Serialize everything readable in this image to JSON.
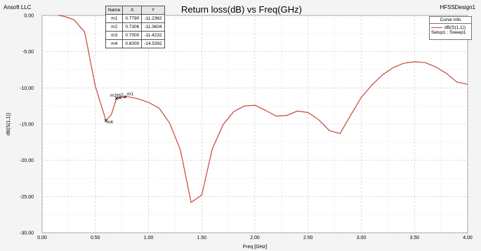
{
  "header": {
    "company": "Ansoft LLC",
    "title": "Return loss(dB) vs Freq(GHz)",
    "design": "HFSSDesign1"
  },
  "marker_table": {
    "headers": [
      "Name",
      "X",
      "Y"
    ],
    "rows": [
      [
        "m1",
        "0.7790",
        "-11.2362"
      ],
      [
        "m2",
        "0.7306",
        "-11.3604"
      ],
      [
        "m3",
        "0.7000",
        "-11.4232"
      ],
      [
        "m4",
        "0.6000",
        "-14.5392"
      ]
    ]
  },
  "curve_info": {
    "title": "Curve Info",
    "series_label": "dB(S(1,1))",
    "sweep_label": "Setup1 : Sweep1"
  },
  "colors": {
    "curve": "#c8463c",
    "plot_bg": "#ffffff",
    "grid": "#c8c8c8"
  },
  "chart_data": {
    "type": "line",
    "title": "Return loss(dB) vs Freq(GHz)",
    "xlabel": "Freq [GHz]",
    "ylabel": "dB(S(1,1))",
    "xlim": [
      0,
      4
    ],
    "ylim": [
      -30,
      0
    ],
    "grid": true,
    "legend_position": "top-right",
    "xticks": [
      "0.00",
      "0.50",
      "1.00",
      "1.50",
      "2.00",
      "2.50",
      "3.00",
      "3.50",
      "4.00"
    ],
    "yticks": [
      "0.00",
      "-5.00",
      "-10.00",
      "-15.00",
      "-20.00",
      "-25.00",
      "-30.00"
    ],
    "series": [
      {
        "name": "dB(S(1,1))",
        "x": [
          0.15,
          0.2,
          0.3,
          0.4,
          0.5,
          0.6,
          0.65,
          0.7,
          0.73,
          0.78,
          0.8,
          0.9,
          1.0,
          1.1,
          1.2,
          1.3,
          1.4,
          1.5,
          1.6,
          1.7,
          1.8,
          1.9,
          2.0,
          2.1,
          2.2,
          2.3,
          2.4,
          2.5,
          2.6,
          2.7,
          2.8,
          2.9,
          3.0,
          3.1,
          3.2,
          3.3,
          3.4,
          3.5,
          3.6,
          3.7,
          3.8,
          3.9,
          4.0
        ],
        "y": [
          0.0,
          -0.1,
          -0.6,
          -2.3,
          -9.8,
          -14.5,
          -13.7,
          -11.4,
          -11.36,
          -11.24,
          -11.2,
          -11.5,
          -12.0,
          -12.8,
          -14.9,
          -18.6,
          -25.8,
          -24.8,
          -18.4,
          -15.1,
          -13.3,
          -12.5,
          -12.4,
          -13.1,
          -13.9,
          -13.8,
          -13.2,
          -13.4,
          -14.4,
          -15.9,
          -16.3,
          -13.8,
          -11.3,
          -9.6,
          -8.2,
          -7.2,
          -6.6,
          -6.4,
          -6.5,
          -7.1,
          -8.0,
          -9.2,
          -9.5
        ]
      }
    ],
    "markers": [
      {
        "name": "m1",
        "x": 0.779,
        "y": -11.2362
      },
      {
        "name": "m2",
        "x": 0.7306,
        "y": -11.3604
      },
      {
        "name": "m3",
        "x": 0.7,
        "y": -11.4232
      },
      {
        "name": "m4",
        "x": 0.6,
        "y": -14.5392
      }
    ]
  }
}
